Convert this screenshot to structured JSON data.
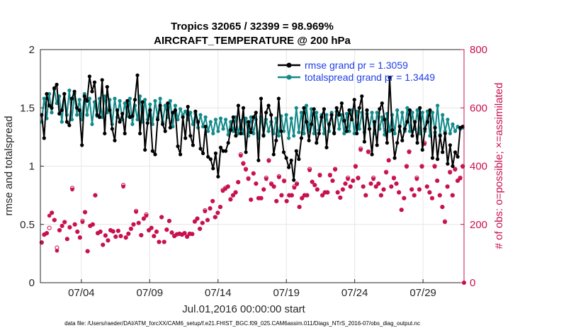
{
  "chart_data": {
    "type": "line",
    "title": "Tropics 32065 / 32399 = 98.969%",
    "subtitle": "AIRCRAFT_TEMPERATURE @ 200 hPa",
    "ylabel": "rmse and totalspread",
    "ylabel_right": "# of obs: o=possible; ×=assimilated",
    "xlabel": "Jul.01,2016 00:00:00 start",
    "footer": "data file: /Users/raeder/DAI/ATM_forcXX/CAM6_setup/f.e21.FHIST_BGC.f09_025.CAM6assim.011/Diags_NTrS_2016-07/obs_diag_output.nc",
    "xlim": [
      1,
      32
    ],
    "ylim": [
      0,
      2
    ],
    "ylim_right": [
      0,
      800
    ],
    "yticks": [
      "0",
      "0.5",
      "1",
      "1.5",
      "2"
    ],
    "yticks_right": [
      "0",
      "200",
      "400",
      "600",
      "800"
    ],
    "xticks": [
      {
        "pos": 4,
        "label": "07/04"
      },
      {
        "pos": 9,
        "label": "07/09"
      },
      {
        "pos": 14,
        "label": "07/14"
      },
      {
        "pos": 19,
        "label": "07/19"
      },
      {
        "pos": 24,
        "label": "07/24"
      },
      {
        "pos": 29,
        "label": "07/29"
      }
    ],
    "legend_position": "top-right",
    "grid": true,
    "colors": {
      "rmse": "#000000",
      "spread": "#138a8a",
      "obs": "#c8104f",
      "legend_text": "#1e3ee6",
      "grid": "#e6e6e6"
    },
    "series": [
      {
        "name": "rmse grand pr = 1.3059",
        "axis": "left",
        "values": [
          1.44,
          1.24,
          1.62,
          1.52,
          1.5,
          1.67,
          1.7,
          1.45,
          1.48,
          1.62,
          1.38,
          1.35,
          1.58,
          1.64,
          1.5,
          1.48,
          1.18,
          1.6,
          1.56,
          1.77,
          1.64,
          1.72,
          1.44,
          1.42,
          1.74,
          1.28,
          1.68,
          1.48,
          1.32,
          1.22,
          1.48,
          1.38,
          1.45,
          1.28,
          1.56,
          1.42,
          1.43,
          1.57,
          1.78,
          1.28,
          1.55,
          1.14,
          1.37,
          1.48,
          1.13,
          1.1,
          1.4,
          1.52,
          1.36,
          1.3,
          1.54,
          1.33,
          1.46,
          1.48,
          1.17,
          1.1,
          1.42,
          1.24,
          1.51,
          1.26,
          1.18,
          1.47,
          1.38,
          1.15,
          1.11,
          1.34,
          1.08,
          1.06,
          0.98,
          1.11,
          0.91,
          1.16,
          1.13,
          1.13,
          1.2,
          1.31,
          1.42,
          1.26,
          1.52,
          1.28,
          1.5,
          1.12,
          1.38,
          1.29,
          1.42,
          1.46,
          1.05,
          1.58,
          1.26,
          1.46,
          1.52,
          1.44,
          1.1,
          1.22,
          1.58,
          1.3,
          1.12,
          1.07,
          0.99,
          1.05,
          0.88,
          1.13,
          1.06,
          1.24,
          1.5,
          1.38,
          1.22,
          1.36,
          1.49,
          1.2,
          1.28,
          1.42,
          1.49,
          1.16,
          1.36,
          1.44,
          1.28,
          1.5,
          1.44,
          1.54,
          1.39,
          1.3,
          1.48,
          1.4,
          1.57,
          1.28,
          1.5,
          1.6,
          1.21,
          1.48,
          1.32,
          1.1,
          1.38,
          1.18,
          1.49,
          1.54,
          1.4,
          1.2,
          1.76,
          1.31,
          1.07,
          1.2,
          1.34,
          1.22,
          1.32,
          1.38,
          1.48,
          1.26,
          1.38,
          1.2,
          1.5,
          1.14,
          1.32,
          1.38,
          1.48,
          1.07,
          1.33,
          1.06,
          1.26,
          1.12,
          1.28,
          1.02,
          1.18,
          1.0,
          1.12,
          1.08,
          1.33,
          1.34
        ]
      },
      {
        "name": "totalspread grand pr = 1.3449",
        "axis": "left",
        "values": [
          1.38,
          1.58,
          1.41,
          1.62,
          1.46,
          1.66,
          1.54,
          1.6,
          1.38,
          1.62,
          1.44,
          1.65,
          1.4,
          1.62,
          1.44,
          1.57,
          1.4,
          1.62,
          1.44,
          1.58,
          1.36,
          1.55,
          1.43,
          1.58,
          1.42,
          1.6,
          1.46,
          1.57,
          1.36,
          1.58,
          1.42,
          1.56,
          1.4,
          1.54,
          1.43,
          1.58,
          1.36,
          1.52,
          1.4,
          1.6,
          1.38,
          1.57,
          1.4,
          1.53,
          1.36,
          1.56,
          1.42,
          1.58,
          1.38,
          1.52,
          1.42,
          1.56,
          1.34,
          1.52,
          1.4,
          1.49,
          1.44,
          1.47,
          1.4,
          1.46,
          1.36,
          1.45,
          1.33,
          1.44,
          1.34,
          1.42,
          1.3,
          1.38,
          1.28,
          1.4,
          1.3,
          1.41,
          1.32,
          1.4,
          1.27,
          1.38,
          1.3,
          1.42,
          1.28,
          1.39,
          1.28,
          1.41,
          1.26,
          1.42,
          1.28,
          1.4,
          1.24,
          1.42,
          1.27,
          1.4,
          1.3,
          1.38,
          1.28,
          1.41,
          1.26,
          1.43,
          1.3,
          1.44,
          1.24,
          1.41,
          1.26,
          1.5,
          1.29,
          1.46,
          1.28,
          1.52,
          1.3,
          1.49,
          1.28,
          1.46,
          1.31,
          1.44,
          1.28,
          1.44,
          1.3,
          1.46,
          1.29,
          1.47,
          1.32,
          1.44,
          1.28,
          1.45,
          1.3,
          1.48,
          1.28,
          1.47,
          1.32,
          1.46,
          1.29,
          1.45,
          1.32,
          1.46,
          1.28,
          1.46,
          1.32,
          1.42,
          1.27,
          1.45,
          1.3,
          1.44,
          1.28,
          1.48,
          1.3,
          1.46,
          1.3,
          1.5,
          1.3,
          1.46,
          1.32,
          1.48,
          1.28,
          1.46,
          1.3,
          1.47,
          1.26,
          1.46,
          1.29,
          1.52,
          1.27,
          1.44,
          1.3,
          1.4,
          1.28,
          1.36,
          1.3,
          1.34,
          1.32,
          1.33
        ]
      },
      {
        "name": "obs possible",
        "axis": "right",
        "marker": "circle",
        "values": [
          138,
          165,
          170,
          188,
          240,
          215,
          120,
          180,
          195,
          208,
          150,
          190,
          325,
          200,
          175,
          155,
          212,
          242,
          108,
          195,
          200,
          300,
          170,
          175,
          130,
          162,
          145,
          180,
          176,
          158,
          178,
          160,
          335,
          155,
          168,
          185,
          200,
          246,
          205,
          163,
          220,
          234,
          180,
          188,
          160,
          175,
          140,
          225,
          140,
          182,
          212,
          172,
          160,
          166,
          168,
          165,
          170,
          158,
          168,
          167,
          210,
          220,
          185,
          205,
          248,
          215,
          255,
          280,
          225,
          240,
          260,
          318,
          325,
          330,
          286,
          300,
          310,
          345,
          440,
          410,
          390,
          358,
          285,
          375,
          340,
          290,
          290,
          320,
          360,
          420,
          340,
          330,
          280,
          365,
          300,
          350,
          280,
          300,
          300,
          330,
          340,
          260,
          290,
          300,
          300,
          390,
          346,
          335,
          320,
          370,
          300,
          310,
          310,
          370,
          350,
          390,
          310,
          292,
          320,
          340,
          360,
          330,
          350,
          400,
          360,
          460,
          330,
          300,
          450,
          340,
          360,
          330,
          340,
          300,
          320,
          380,
          420,
          330,
          360,
          340,
          310,
          250,
          290,
          400,
          450,
          320,
          300,
          360,
          320,
          400,
          480,
          330,
          310,
          290,
          400,
          350,
          300,
          260,
          210,
          330,
          380,
          300,
          390,
          350,
          360,
          400
        ]
      },
      {
        "name": "obs assimilated",
        "axis": "right",
        "marker": "star",
        "values": [
          138,
          165,
          170,
          230,
          240,
          215,
          110,
          180,
          195,
          208,
          150,
          190,
          320,
          200,
          175,
          155,
          208,
          242,
          108,
          195,
          200,
          300,
          170,
          175,
          130,
          162,
          145,
          180,
          176,
          158,
          178,
          160,
          330,
          155,
          168,
          185,
          200,
          243,
          205,
          163,
          220,
          230,
          180,
          188,
          160,
          175,
          140,
          225,
          140,
          182,
          212,
          172,
          160,
          166,
          168,
          165,
          170,
          158,
          168,
          167,
          210,
          220,
          185,
          205,
          245,
          215,
          255,
          280,
          225,
          240,
          260,
          315,
          322,
          330,
          286,
          300,
          310,
          345,
          436,
          408,
          388,
          356,
          285,
          375,
          340,
          290,
          290,
          320,
          356,
          418,
          338,
          330,
          280,
          362,
          300,
          348,
          280,
          300,
          300,
          326,
          338,
          260,
          290,
          300,
          300,
          386,
          346,
          335,
          320,
          368,
          300,
          310,
          310,
          368,
          350,
          388,
          310,
          292,
          320,
          340,
          356,
          330,
          350,
          398,
          358,
          456,
          330,
          300,
          448,
          340,
          356,
          330,
          340,
          300,
          320,
          378,
          420,
          330,
          358,
          340,
          310,
          250,
          290,
          398,
          448,
          320,
          300,
          356,
          320,
          398,
          476,
          330,
          310,
          290,
          398,
          350,
          300,
          260,
          208,
          330,
          378,
          300,
          388,
          350,
          358,
          398
        ]
      }
    ]
  }
}
